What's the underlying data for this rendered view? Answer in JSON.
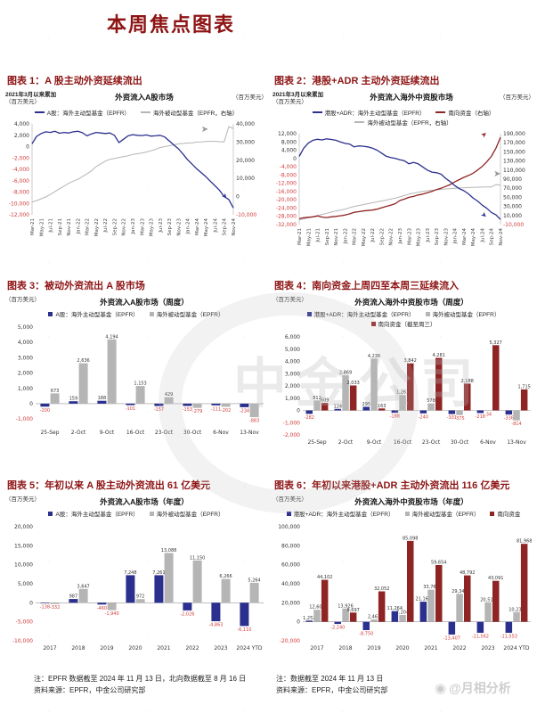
{
  "page": {
    "title": "本周焦点图表",
    "watermark_center": "中金公司",
    "watermark_bottom": "@月相分析"
  },
  "footnotes": {
    "left_note": "注：EPFR 数据截至 2024 年 11 月 13 日，北向数据截至 8 月 16 日",
    "left_source": "资料来源：EPFR，中金公司研究部",
    "right_note": "注：数据截至 2024 年 11 月 13 日",
    "right_source": "资料来源：EPFR，中金公司研究部"
  },
  "colors": {
    "navy": "#2b2f8e",
    "gray": "#b5b5b5",
    "red": "#8f2424",
    "label_neg": "#d23d3d",
    "title_red": "#8e1414",
    "arrow_gray": "#9a9a9a"
  },
  "chart_data": [
    {
      "type": "line",
      "panel_title": "图表 1：A 股主动外资延续流出",
      "note": "2021年3月以来累加",
      "unit_left": "（百万美元）",
      "title": "外资流入A股市场",
      "unit_right": "（百万美元）",
      "x_ticks": [
        "Mar-21",
        "May-21",
        "Jul-21",
        "Sep-21",
        "Nov-21",
        "Jan-22",
        "Mar-22",
        "May-22",
        "Jul-22",
        "Sep-22",
        "Nov-22",
        "Jan-23",
        "Mar-23",
        "May-23",
        "Jul-23",
        "Sep-23",
        "Nov-23",
        "Jan-24",
        "Mar-24",
        "May-24",
        "Jul-24",
        "Sep-24",
        "Nov-24"
      ],
      "axis_left": {
        "min": -12000,
        "max": 4000,
        "ticks": [
          4000,
          2000,
          0,
          -2000,
          -4000,
          -6000,
          -8000,
          -10000,
          -12000
        ]
      },
      "axis_right": {
        "min": -10000,
        "max": 40000,
        "ticks": [
          40000,
          30000,
          20000,
          10000,
          0,
          -10000
        ]
      },
      "legend_rows": [
        [
          0,
          1
        ]
      ],
      "series": [
        {
          "name": "A股：海外主动型基金（EPFR）",
          "color": "navy",
          "axis": "left",
          "values": [
            500,
            1800,
            2300,
            2600,
            2500,
            2700,
            2350,
            2500,
            2400,
            2600,
            2700,
            2450,
            1900,
            2250,
            2500,
            2400,
            2300,
            2400,
            2000,
            700,
            1300,
            1900,
            2100,
            2000,
            1950,
            2050,
            1850,
            1900,
            2000,
            1700,
            1000,
            300,
            -400,
            -1300,
            -2300,
            -3100,
            -3900,
            -4600,
            -5300,
            -6100,
            -6900,
            -7700,
            -8800,
            -9300,
            -10800
          ]
        },
        {
          "name": "海外被动型基金（EPFR，右轴）",
          "color": "gray",
          "axis": "right",
          "values": [
            -3000,
            -2200,
            -1200,
            -200,
            1200,
            2800,
            4300,
            5800,
            7300,
            8500,
            9500,
            11000,
            12500,
            14200,
            16500,
            18000,
            19500,
            20500,
            21000,
            21500,
            22000,
            22500,
            23200,
            23600,
            24000,
            24500,
            25200,
            26000,
            27000,
            27500,
            28000,
            28500,
            29000,
            29200,
            29500,
            29600,
            30000,
            30100,
            30300,
            30400,
            30400,
            30200,
            30100,
            38500,
            37500
          ]
        }
      ],
      "arrows": [
        {
          "fx": 0.84,
          "axis": "right",
          "v": 35500,
          "dir": 0,
          "color": "arrow_gray"
        },
        {
          "fx": 0.94,
          "axis": "left",
          "v": -8600,
          "dir": 50,
          "color": "navy"
        }
      ]
    },
    {
      "type": "line",
      "panel_title": "图表 2：港股+ADR 主动外资延续流出",
      "note": "2021年3月以来累加",
      "unit_left": "（百万美元）",
      "title": "外资流入海外中资股市场",
      "unit_right": "（百万美元）",
      "x_ticks": [
        "Mar-21",
        "May-21",
        "Jul-21",
        "Sep-21",
        "Nov-21",
        "Jan-22",
        "Mar-22",
        "May-22",
        "Jul-22",
        "Sep-22",
        "Nov-22",
        "Jan-23",
        "Mar-23",
        "May-23",
        "Jul-23",
        "Sep-23",
        "Nov-23",
        "Jan-24",
        "Mar-24",
        "May-24",
        "Jul-24",
        "Sep-24",
        "Nov-24"
      ],
      "axis_left": {
        "min": -32000,
        "max": 12000,
        "ticks": [
          12000,
          8000,
          4000,
          0,
          -4000,
          -8000,
          -12000,
          -16000,
          -20000,
          -24000,
          -28000,
          -32000
        ]
      },
      "axis_right": {
        "min": -10000,
        "max": 190000,
        "ticks": [
          190000,
          170000,
          150000,
          130000,
          110000,
          90000,
          70000,
          50000,
          30000,
          10000,
          -10000
        ]
      },
      "legend_rows": [
        [
          0,
          1
        ],
        [
          2
        ]
      ],
      "series": [
        {
          "name": "港股+ADR：海外主动型基金（EPFR）",
          "color": "navy",
          "axis": "left",
          "values": [
            1000,
            5000,
            7500,
            8800,
            9300,
            9000,
            9500,
            9200,
            8800,
            8000,
            7300,
            7000,
            5600,
            6100,
            5900,
            5600,
            5000,
            4000,
            2600,
            1100,
            500,
            0,
            -600,
            -1100,
            -2600,
            -1900,
            -2600,
            -4100,
            -5600,
            -6600,
            -6900,
            -7600,
            -9600,
            -11200,
            -13100,
            -14600,
            -15600,
            -17100,
            -19100,
            -20600,
            -22600,
            -24100,
            -26100,
            -27300,
            -29500
          ]
        },
        {
          "name": "南向资金（右轴）",
          "color": "red",
          "axis": "right",
          "values": [
            3000,
            5000,
            6000,
            7000,
            9000,
            6500,
            5500,
            7000,
            8000,
            9500,
            11000,
            13500,
            17000,
            18500,
            20000,
            21000,
            22000,
            24000,
            27000,
            30000,
            32500,
            36000,
            43000,
            46000,
            50000,
            52000,
            55000,
            57000,
            60000,
            63000,
            67000,
            70000,
            74000,
            78000,
            84000,
            89000,
            94000,
            98000,
            103000,
            110000,
            118000,
            128000,
            140000,
            158000,
            182000
          ]
        },
        {
          "name": "海外被动型基金（EPFR，右轴）",
          "color": "gray",
          "axis": "right",
          "values": [
            0,
            2500,
            5000,
            7500,
            10000,
            12500,
            15000,
            17500,
            20000,
            22000,
            24000,
            27000,
            30000,
            32000,
            34000,
            36000,
            38000,
            40000,
            42000,
            44000,
            46000,
            48000,
            51000,
            54000,
            57000,
            59000,
            61000,
            63000,
            64500,
            65500,
            66500,
            67500,
            68500,
            69000,
            70000,
            70500,
            71000,
            71500,
            72000,
            72300,
            72500,
            72800,
            73000,
            78000,
            77000
          ]
        }
      ],
      "arrows": [
        {
          "fx": 0.915,
          "axis": "right",
          "v": 180000,
          "dir": -42,
          "color": "red"
        },
        {
          "fx": 0.965,
          "axis": "right",
          "v": 96000,
          "dir": 0,
          "color": "arrow_gray"
        },
        {
          "fx": 0.9,
          "axis": "left",
          "v": -27200,
          "dir": 42,
          "color": "navy"
        }
      ]
    },
    {
      "type": "bar",
      "panel_title": "图表 3：被动外资流出 A 股市场",
      "unit_left": "（百万美元）",
      "title": "外资流入A股市场（周度）",
      "categories": [
        "25-Sep",
        "2-Oct",
        "9-Oct",
        "16-Oct",
        "23-Oct",
        "30-Oct",
        "6-Nov",
        "13-Nov"
      ],
      "axis_left": {
        "min": -1400,
        "max": 5000,
        "ticks": [
          5000,
          4000,
          3000,
          2000,
          1000,
          0,
          -1000
        ]
      },
      "legend_rows": [
        [
          0,
          1
        ]
      ],
      "series": [
        {
          "name": "A股：海外主动型基金（EPFR）",
          "color": "navy",
          "values": [
            -200,
            159,
            188,
            -101,
            -157,
            -153,
            -111,
            -234
          ]
        },
        {
          "name": "海外被动型基金（EPFR）",
          "color": "gray",
          "values": [
            673,
            2636,
            4194,
            1153,
            429,
            -279,
            -202,
            -883
          ]
        }
      ]
    },
    {
      "type": "bar",
      "panel_title": "图表 4：南向资金上周四至本周三延续流入",
      "unit_left": "（百万美元）",
      "title": "外资流入海外中资股市场（周度）",
      "categories": [
        "25-Sep",
        "2-Oct",
        "9-Oct",
        "16-Oct",
        "23-Oct",
        "30-Oct",
        "6-Nov",
        "13-Nov"
      ],
      "axis_left": {
        "min": -2000,
        "max": 6000,
        "ticks": [
          6000,
          5000,
          4000,
          3000,
          2000,
          1000,
          0,
          -1000,
          -2000
        ]
      },
      "legend_rows": [
        [
          0,
          1
        ],
        [
          2
        ]
      ],
      "series": [
        {
          "name": "港股+ADR：海外主动型基金（EPFR）",
          "color": "navy",
          "values": [
            -282,
            124,
            295,
            -188,
            -240,
            -301,
            -216,
            -336
          ]
        },
        {
          "name": "海外被动型基金（EPFR）",
          "color": "gray",
          "values": [
            812,
            2869,
            4236,
            1261,
            578,
            -375,
            -34,
            -814
          ]
        },
        {
          "name": "南向资金（截至周三）",
          "color": "red",
          "values": [
            609,
            2033,
            163,
            3842,
            4281,
            2188,
            5327,
            1715
          ]
        }
      ]
    },
    {
      "type": "bar",
      "panel_title": "图表 5：年初以来 A 股主动外资流出 61 亿美元",
      "unit_left": "（百万美元）",
      "title": "外资流入A股市场（年度）",
      "categories": [
        "2017",
        "2018",
        "2019",
        "2020",
        "2021",
        "2022",
        "2023",
        "2024 YTD"
      ],
      "axis_left": {
        "min": -10000,
        "max": 20000,
        "ticks": [
          20000,
          15000,
          10000,
          5000,
          0,
          -5000,
          -10000
        ]
      },
      "legend_rows": [
        [
          0,
          1
        ]
      ],
      "series": [
        {
          "name": "A股：海外主动型基金（EPFR）",
          "color": "navy",
          "values": [
            -138,
            987,
            -460,
            7248,
            7261,
            -2026,
            -4863,
            -6110
          ]
        },
        {
          "name": "海外被动型基金（EPFR）",
          "color": "gray",
          "values": [
            -332,
            3647,
            -1940,
            972,
            13088,
            11150,
            6266,
            5264
          ]
        }
      ]
    },
    {
      "type": "bar",
      "panel_title": "图表 6：年初以来港股+ADR 主动外资流出 116 亿美元",
      "unit_left": "（百万美元）",
      "title": "外资流入海外中资股市场（年度）",
      "categories": [
        "2017",
        "2018",
        "2019",
        "2020",
        "2021",
        "2022",
        "2023",
        "2024 YTD"
      ],
      "axis_left": {
        "min": -20000,
        "max": 100000,
        "ticks": [
          100000,
          80000,
          60000,
          40000,
          20000,
          0,
          -20000
        ]
      },
      "legend_rows": [
        [
          0,
          1,
          2
        ]
      ],
      "series": [
        {
          "name": "港股+ADR：海外主动型基金（EPFR）",
          "color": "navy",
          "values": [
            1252,
            -2240,
            -8750,
            11264,
            21165,
            -13407,
            -11562,
            -11553
          ]
        },
        {
          "name": "海外被动型基金（EPFR）",
          "color": "gray",
          "values": [
            12607,
            13926,
            2461,
            7204,
            33763,
            29341,
            20511,
            10233
          ]
        },
        {
          "name": "南向资金",
          "color": "red",
          "values": [
            44102,
            9697,
            32052,
            85098,
            59654,
            48792,
            43091,
            81968
          ]
        }
      ]
    }
  ]
}
